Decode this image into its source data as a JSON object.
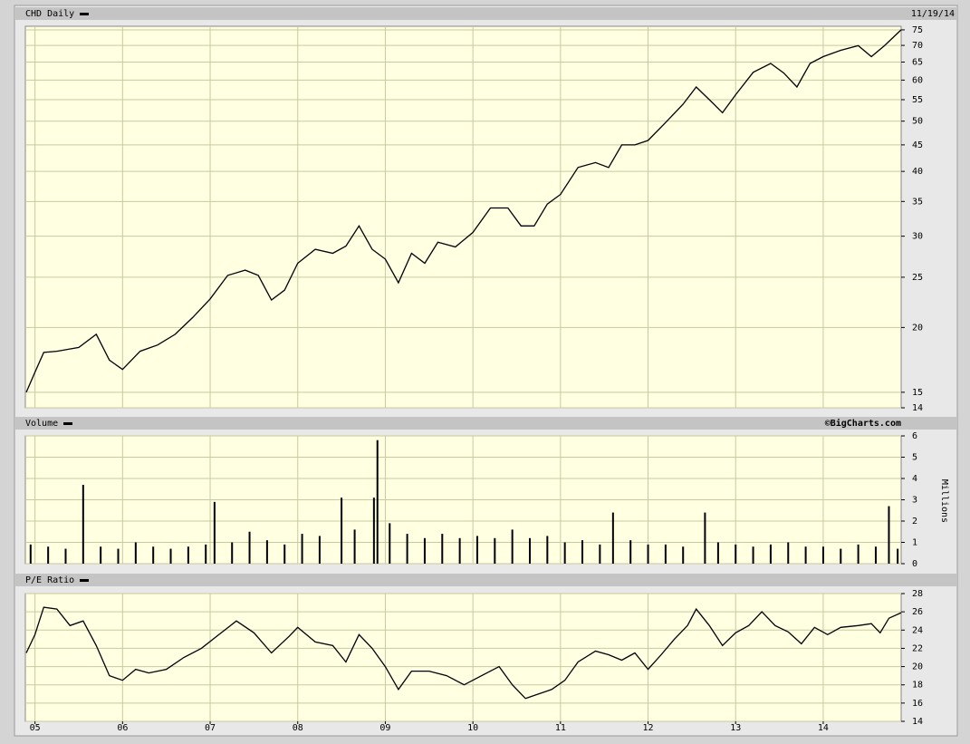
{
  "chart_data": [
    {
      "type": "line",
      "title": "CHD Daily",
      "date": "11/19/14",
      "log_scale": true,
      "grid": true,
      "color": "#000000",
      "xlim": [
        2004.89,
        2014.89
      ],
      "ylim": [
        14,
        76.2
      ],
      "yticks": [
        14,
        15,
        20,
        25,
        30,
        35,
        40,
        45,
        50,
        55,
        60,
        65,
        70,
        75
      ],
      "x": [
        2004.9,
        2005.0,
        2005.1,
        2005.25,
        2005.5,
        2005.7,
        2005.85,
        2006.0,
        2006.2,
        2006.4,
        2006.6,
        2006.8,
        2007.0,
        2007.2,
        2007.4,
        2007.55,
        2007.7,
        2007.85,
        2008.0,
        2008.2,
        2008.4,
        2008.55,
        2008.7,
        2008.85,
        2009.0,
        2009.15,
        2009.3,
        2009.45,
        2009.6,
        2009.8,
        2010.0,
        2010.2,
        2010.4,
        2010.55,
        2010.7,
        2010.85,
        2011.0,
        2011.2,
        2011.4,
        2011.55,
        2011.7,
        2011.85,
        2012.0,
        2012.2,
        2012.4,
        2012.55,
        2012.7,
        2012.85,
        2013.0,
        2013.2,
        2013.4,
        2013.55,
        2013.7,
        2013.85,
        2014.0,
        2014.2,
        2014.4,
        2014.55,
        2014.7,
        2014.89
      ],
      "values": [
        15.0,
        16.4,
        17.9,
        18.0,
        18.3,
        19.4,
        17.3,
        16.6,
        18.0,
        18.5,
        19.4,
        20.9,
        22.7,
        25.2,
        25.8,
        25.2,
        22.6,
        23.6,
        26.6,
        28.3,
        27.8,
        28.7,
        31.4,
        28.3,
        27.1,
        24.4,
        27.8,
        26.6,
        29.2,
        28.6,
        30.5,
        34.0,
        34.0,
        31.4,
        31.4,
        34.6,
        36.1,
        40.7,
        41.6,
        40.7,
        45.0,
        45.0,
        45.9,
        49.7,
        53.9,
        58.2,
        55.0,
        51.9,
        56.2,
        62.1,
        64.6,
        61.9,
        58.2,
        64.6,
        66.6,
        68.5,
        69.9,
        66.6,
        69.9,
        75.0
      ]
    },
    {
      "type": "bar",
      "title": "Volume",
      "credit": "©BigCharts.com",
      "y_label": "Millions",
      "grid": true,
      "color": "#000000",
      "xlim": [
        2004.89,
        2014.89
      ],
      "ylim": [
        0,
        6
      ],
      "yticks": [
        0,
        1,
        2,
        3,
        4,
        5,
        6
      ],
      "x": [
        2004.95,
        2005.15,
        2005.35,
        2005.55,
        2005.75,
        2005.95,
        2006.15,
        2006.35,
        2006.55,
        2006.75,
        2006.95,
        2007.05,
        2007.25,
        2007.45,
        2007.65,
        2007.85,
        2008.05,
        2008.25,
        2008.5,
        2008.65,
        2008.87,
        2008.91,
        2009.05,
        2009.25,
        2009.45,
        2009.65,
        2009.85,
        2010.05,
        2010.25,
        2010.45,
        2010.65,
        2010.85,
        2011.05,
        2011.25,
        2011.45,
        2011.6,
        2011.8,
        2012.0,
        2012.2,
        2012.4,
        2012.65,
        2012.8,
        2013.0,
        2013.2,
        2013.4,
        2013.6,
        2013.8,
        2014.0,
        2014.2,
        2014.4,
        2014.6,
        2014.75,
        2014.85
      ],
      "values": [
        0.9,
        0.8,
        0.7,
        3.7,
        0.8,
        0.7,
        1.0,
        0.8,
        0.7,
        0.8,
        0.9,
        2.9,
        1.0,
        1.5,
        1.1,
        0.9,
        1.4,
        1.3,
        3.1,
        1.6,
        3.1,
        5.8,
        1.9,
        1.4,
        1.2,
        1.4,
        1.2,
        1.3,
        1.2,
        1.6,
        1.2,
        1.3,
        1.0,
        1.1,
        0.9,
        2.4,
        1.1,
        0.9,
        0.9,
        0.8,
        2.4,
        1.0,
        0.9,
        0.8,
        0.9,
        1.0,
        0.8,
        0.8,
        0.7,
        0.9,
        0.8,
        2.7,
        0.7
      ]
    },
    {
      "type": "line",
      "title": "P/E Ratio",
      "grid": true,
      "color": "#000000",
      "xlim": [
        2004.89,
        2014.89
      ],
      "ylim": [
        14,
        28
      ],
      "yticks": [
        14,
        16,
        18,
        20,
        22,
        24,
        26,
        28
      ],
      "xticks": [
        {
          "value": 2005,
          "label": "05"
        },
        {
          "value": 2006,
          "label": "06"
        },
        {
          "value": 2007,
          "label": "07"
        },
        {
          "value": 2008,
          "label": "08"
        },
        {
          "value": 2009,
          "label": "09"
        },
        {
          "value": 2010,
          "label": "10"
        },
        {
          "value": 2011,
          "label": "11"
        },
        {
          "value": 2012,
          "label": "12"
        },
        {
          "value": 2013,
          "label": "13"
        },
        {
          "value": 2014,
          "label": "14"
        }
      ],
      "x": [
        2004.9,
        2005.0,
        2005.1,
        2005.25,
        2005.4,
        2005.55,
        2005.7,
        2005.85,
        2006.0,
        2006.15,
        2006.3,
        2006.5,
        2006.7,
        2006.9,
        2007.1,
        2007.3,
        2007.5,
        2007.7,
        2007.9,
        2008.0,
        2008.2,
        2008.4,
        2008.55,
        2008.7,
        2008.85,
        2009.0,
        2009.15,
        2009.3,
        2009.5,
        2009.7,
        2009.9,
        2010.1,
        2010.3,
        2010.45,
        2010.6,
        2010.75,
        2010.9,
        2011.05,
        2011.2,
        2011.4,
        2011.55,
        2011.7,
        2011.85,
        2012.0,
        2012.15,
        2012.3,
        2012.45,
        2012.55,
        2012.7,
        2012.85,
        2013.0,
        2013.15,
        2013.3,
        2013.45,
        2013.6,
        2013.75,
        2013.9,
        2014.05,
        2014.2,
        2014.4,
        2014.55,
        2014.65,
        2014.75,
        2014.89
      ],
      "values": [
        21.5,
        23.5,
        26.5,
        26.3,
        24.5,
        25.0,
        22.3,
        19.0,
        18.5,
        19.7,
        19.3,
        19.7,
        21.0,
        22.0,
        23.5,
        25.0,
        23.7,
        21.5,
        23.3,
        24.3,
        22.7,
        22.3,
        20.5,
        23.5,
        22.0,
        20.0,
        17.5,
        19.5,
        19.5,
        19.0,
        18.0,
        19.0,
        20.0,
        18.0,
        16.5,
        17.0,
        17.5,
        18.5,
        20.5,
        21.7,
        21.3,
        20.7,
        21.5,
        19.7,
        21.3,
        23.0,
        24.5,
        26.3,
        24.5,
        22.3,
        23.7,
        24.5,
        26.0,
        24.5,
        23.8,
        22.5,
        24.3,
        23.5,
        24.3,
        24.5,
        24.7,
        23.7,
        25.3,
        25.9
      ]
    }
  ]
}
